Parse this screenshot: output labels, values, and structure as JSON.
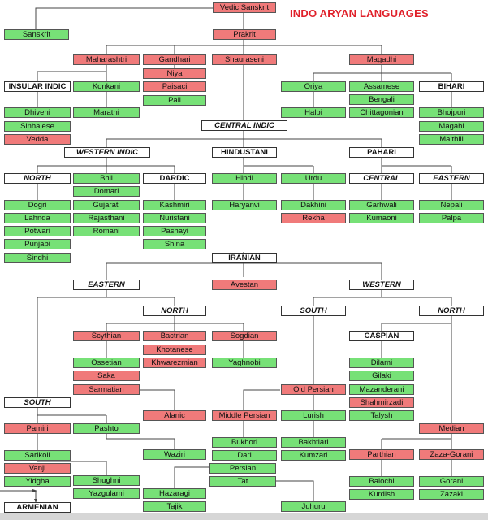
{
  "title": "INDO ARYAN LANGUAGES",
  "colors": {
    "green": "#77e177",
    "red": "#f07a7a",
    "white": "#ffffff",
    "title": "#e0202a"
  },
  "nodes": {
    "vedic": "Vedic Sanskrit",
    "sanskrit": "Sanskrit",
    "prakrit": "Prakrit",
    "maharashtri": "Maharashtri",
    "gandhari": "Gandhari",
    "niya": "Niya",
    "paisaci": "Paisaci",
    "pali": "Pali",
    "shauraseni": "Shauraseni",
    "magadhi": "Magadhi",
    "insular": "INSULAR INDIC",
    "dhivehi": "Dhivehi",
    "sinhalese": "Sinhalese",
    "vedda": "Vedda",
    "konkani": "Konkani",
    "marathi": "Marathi",
    "oriya": "Oriya",
    "halbi": "Halbi",
    "assamese": "Assamese",
    "bengali": "Bengali",
    "chittagonian": "Chittagonian",
    "bihari": "BIHARI",
    "bhojpuri": "Bhojpuri",
    "magahi": "Magahi",
    "maithili": "Maithili",
    "central": "CENTRAL INDIC",
    "western_indic": "WESTERN INDIC",
    "hindustani": "HINDUSTANI",
    "pahari": "PAHARI",
    "north1": "NORTH",
    "bhil": "Bhil",
    "domari": "Domari",
    "gujarati": "Gujarati",
    "rajasthani": "Rajasthani",
    "romani": "Romani",
    "dardic": "DARDIC",
    "kashmiri": "Kashmiri",
    "nuristani": "Nuristani",
    "pashayi": "Pashayi",
    "shina": "Shina",
    "hindi": "Hindi",
    "haryanvi": "Haryanvi",
    "urdu": "Urdu",
    "dakhini": "Dakhini",
    "rekha": "Rekha",
    "central_p": "CENTRAL",
    "garhwali": "Garhwali",
    "kumaoni": "Kumaoni",
    "eastern_p": "EASTERN",
    "nepali": "Nepali",
    "palpa": "Palpa",
    "dogri": "Dogri",
    "lahnda": "Lahnda",
    "potwari": "Potwari",
    "punjabi": "Punjabi",
    "sindhi": "Sindhi",
    "iranian": "IRANIAN",
    "eastern_i": "EASTERN",
    "avestan": "Avestan",
    "western_i": "WESTERN",
    "north_e": "NORTH",
    "south_w": "SOUTH",
    "north_w": "NORTH",
    "scythian": "Scythian",
    "bactrian": "Bactrian",
    "khotanese": "Khotanese",
    "khwarezmian": "Khwarezmian",
    "sogdian": "Sogdian",
    "yaghnobi": "Yaghnobi",
    "ossetian": "Ossetian",
    "saka": "Saka",
    "sarmatian": "Sarmatian",
    "alanic": "Alanic",
    "caspian": "CASPIAN",
    "dilami": "Dilami",
    "gilaki": "Gilaki",
    "mazanderani": "Mazanderani",
    "shahmirzadi": "Shahmirzadi",
    "talysh": "Talysh",
    "south_e": "SOUTH",
    "pamiri": "Pamiri",
    "pashto": "Pashto",
    "waziri": "Waziri",
    "sarikoli": "Sarikoli",
    "vanji": "Vanji",
    "yidgha": "Yidgha",
    "shughni": "Shughni",
    "yazgulami": "Yazgulami",
    "old_persian": "Old Persian",
    "middle_persian": "Middle Persian",
    "lurish": "Lurish",
    "bukhori": "Bukhori",
    "dari": "Dari",
    "persian": "Persian",
    "tat": "Tat",
    "hazaragi": "Hazaragi",
    "tajik": "Tajik",
    "juhuru": "Juhuru",
    "bakhtiari": "Bakhtiari",
    "kumzari": "Kumzari",
    "median": "Median",
    "parthian": "Parthian",
    "zaza_gorani": "Zaza-Gorani",
    "balochi": "Balochi",
    "kurdish": "Kurdish",
    "gorani": "Gorani",
    "zazaki": "Zazaki",
    "armenian": "ARMENIAN"
  }
}
